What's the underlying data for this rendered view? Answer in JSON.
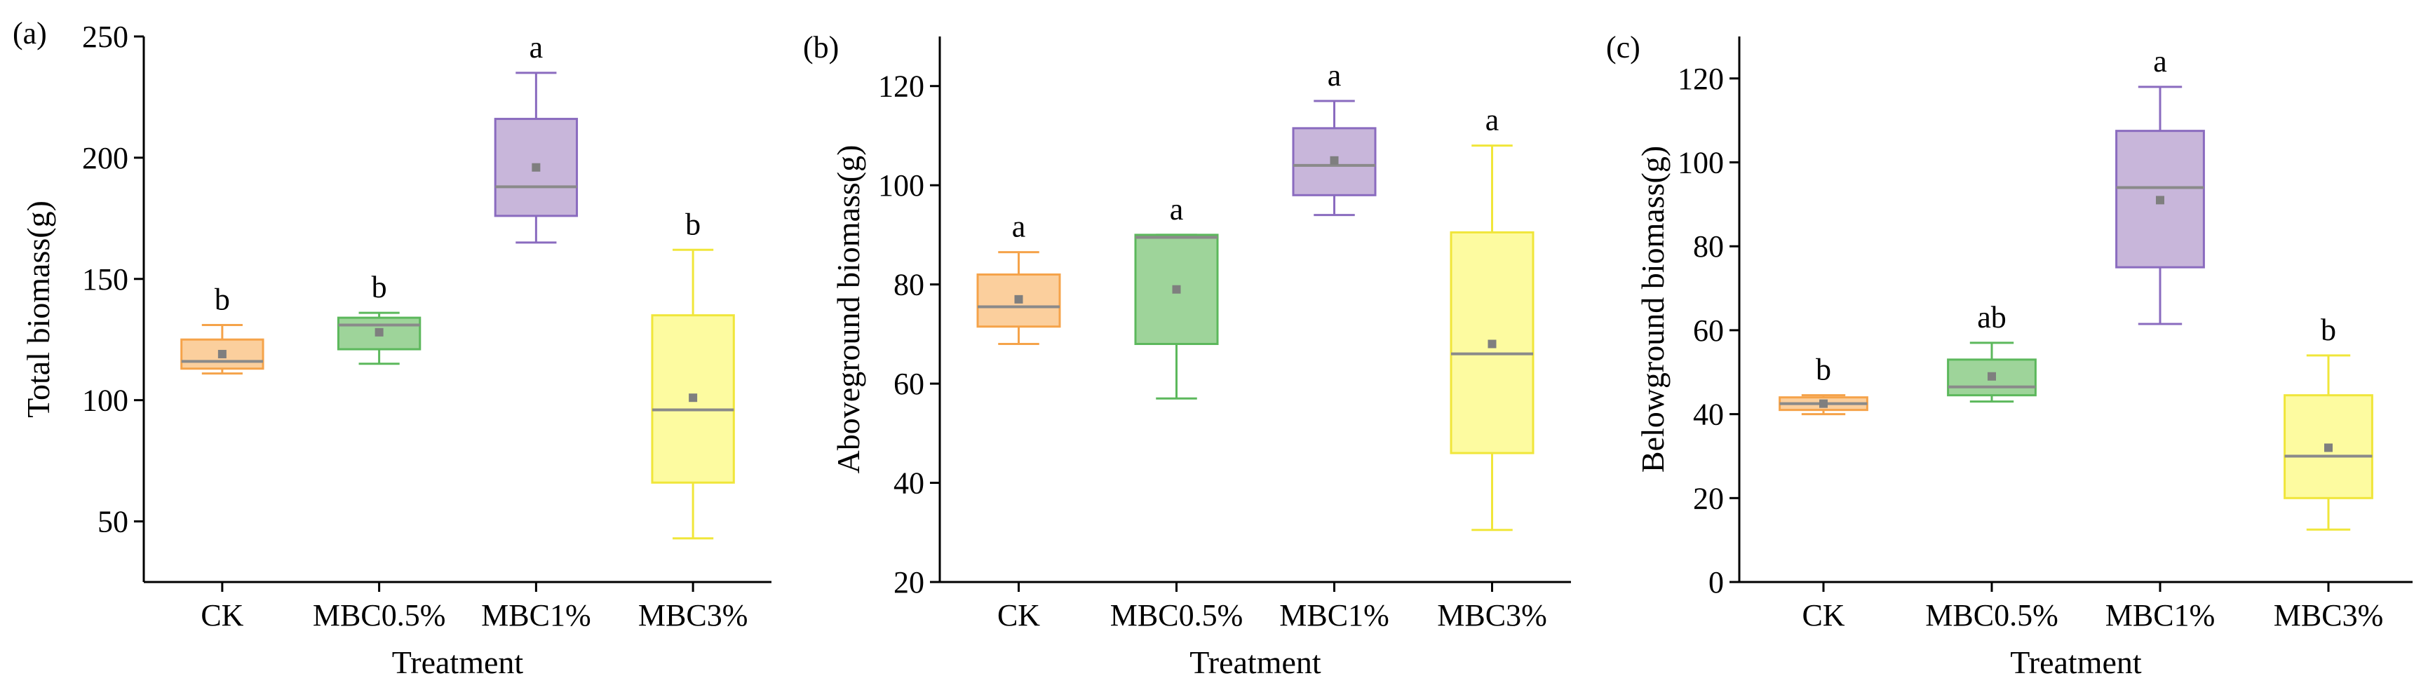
{
  "chart_data": [
    {
      "type": "box",
      "panel_label": "(a)",
      "xlabel": "Treatment",
      "ylabel": "Total biomass(g)",
      "ylim": [
        25,
        250
      ],
      "yticks": [
        50,
        100,
        150,
        200,
        250
      ],
      "categories": [
        "CK",
        "MBC0.5%",
        "MBC1%",
        "MBC3%"
      ],
      "boxes": [
        {
          "category": "CK",
          "min": 111,
          "q1": 113,
          "median": 116,
          "q3": 125,
          "max": 131,
          "mean": 119,
          "letter": "b",
          "color": "#f5a34a",
          "fill": "#fbcf9d"
        },
        {
          "category": "MBC0.5%",
          "min": 115,
          "q1": 121,
          "median": 131,
          "q3": 134,
          "max": 136,
          "mean": 128,
          "letter": "b",
          "color": "#5cb85c",
          "fill": "#9ed49a"
        },
        {
          "category": "MBC1%",
          "min": 165,
          "q1": 176,
          "median": 188,
          "q3": 216,
          "max": 235,
          "mean": 196,
          "letter": "a",
          "color": "#8a6bbf",
          "fill": "#c8b6da"
        },
        {
          "category": "MBC3%",
          "min": 43,
          "q1": 66,
          "median": 96,
          "q3": 135,
          "max": 162,
          "mean": 101,
          "letter": "b",
          "color": "#f0e63a",
          "fill": "#fdfba0"
        }
      ]
    },
    {
      "type": "box",
      "panel_label": "(b)",
      "xlabel": "Treatment",
      "ylabel": "Aboveground biomass(g)",
      "ylim": [
        20,
        130
      ],
      "yticks": [
        20,
        40,
        60,
        80,
        100,
        120
      ],
      "categories": [
        "CK",
        "MBC0.5%",
        "MBC1%",
        "MBC3%"
      ],
      "boxes": [
        {
          "category": "CK",
          "min": 68,
          "q1": 71.5,
          "median": 75.5,
          "q3": 82,
          "max": 86.5,
          "mean": 77,
          "letter": "a",
          "color": "#f5a34a",
          "fill": "#fbcf9d"
        },
        {
          "category": "MBC0.5%",
          "min": 57,
          "q1": 68,
          "median": 89.5,
          "q3": 90,
          "max": 90,
          "mean": 79,
          "letter": "a",
          "color": "#5cb85c",
          "fill": "#9ed49a"
        },
        {
          "category": "MBC1%",
          "min": 94,
          "q1": 98,
          "median": 104,
          "q3": 111.5,
          "max": 117,
          "mean": 105,
          "letter": "a",
          "color": "#8a6bbf",
          "fill": "#c8b6da"
        },
        {
          "category": "MBC3%",
          "min": 30.5,
          "q1": 46,
          "median": 66,
          "q3": 90.5,
          "max": 108,
          "mean": 68,
          "letter": "a",
          "color": "#f0e63a",
          "fill": "#fdfba0"
        }
      ]
    },
    {
      "type": "box",
      "panel_label": "(c)",
      "xlabel": "Treatment",
      "ylabel": "Belowground biomass(g)",
      "ylim": [
        0,
        130
      ],
      "yticks": [
        0,
        20,
        40,
        60,
        80,
        100,
        120
      ],
      "categories": [
        "CK",
        "MBC0.5%",
        "MBC1%",
        "MBC3%"
      ],
      "boxes": [
        {
          "category": "CK",
          "min": 40,
          "q1": 41,
          "median": 42.5,
          "q3": 44,
          "max": 44.5,
          "mean": 42.5,
          "letter": "b",
          "color": "#f5a34a",
          "fill": "#fbcf9d"
        },
        {
          "category": "MBC0.5%",
          "min": 43,
          "q1": 44.5,
          "median": 46.5,
          "q3": 53,
          "max": 57,
          "mean": 49,
          "letter": "ab",
          "color": "#5cb85c",
          "fill": "#9ed49a"
        },
        {
          "category": "MBC1%",
          "min": 61.5,
          "q1": 75,
          "median": 94,
          "q3": 107.5,
          "max": 118,
          "mean": 91,
          "letter": "a",
          "color": "#8a6bbf",
          "fill": "#c8b6da"
        },
        {
          "category": "MBC3%",
          "min": 12.5,
          "q1": 20,
          "median": 30,
          "q3": 44.5,
          "max": 54,
          "mean": 32,
          "letter": "b",
          "color": "#f0e63a",
          "fill": "#fdfba0"
        }
      ]
    }
  ]
}
